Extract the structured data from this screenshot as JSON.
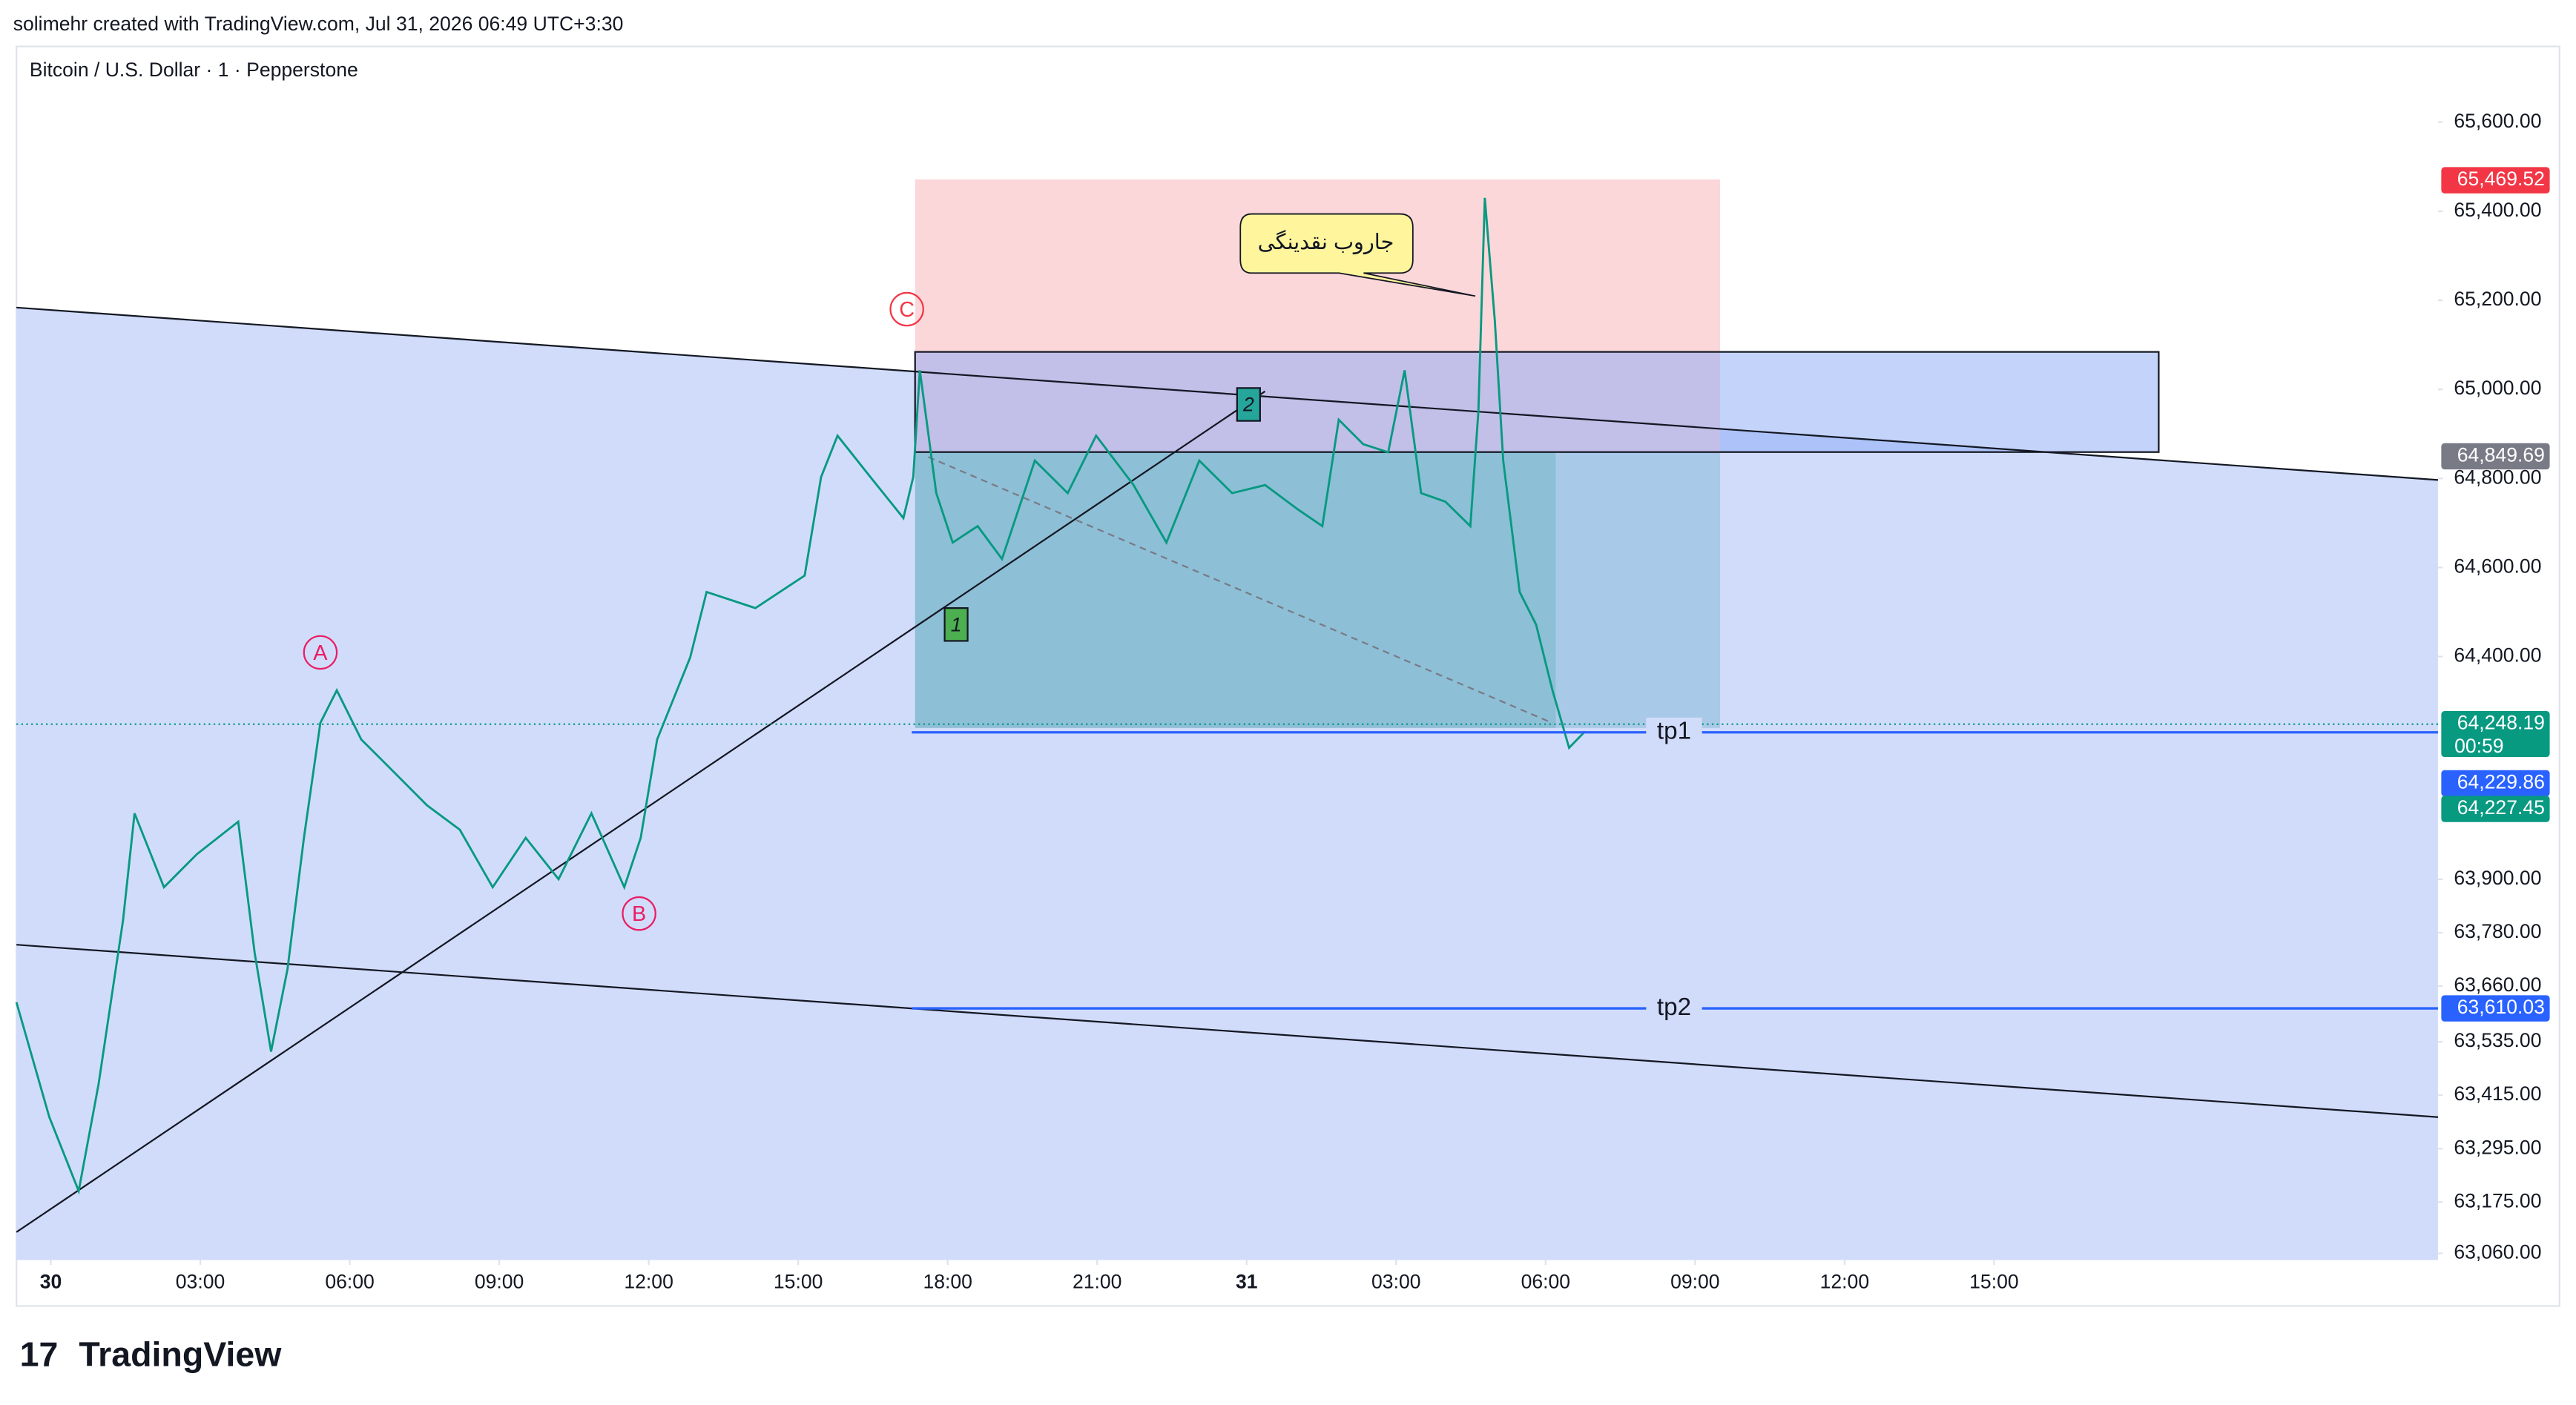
{
  "header": {
    "credit": "solimehr created with TradingView.com, Jul 31, 2026 06:49 UTC+3:30",
    "symbol": "Bitcoin / U.S. Dollar · 1 · Pepperstone"
  },
  "footer": {
    "brand": "TradingView"
  },
  "chart_data": {
    "type": "line",
    "series": [
      {
        "name": "BTCUSD",
        "color": "#089981",
        "x": [
          -0.69,
          -0.03,
          0.56,
          0.96,
          1.45,
          1.68,
          2.27,
          2.93,
          3.76,
          4.09,
          4.42,
          4.75,
          5.08,
          5.41,
          5.74,
          6.23,
          6.89,
          7.55,
          8.21,
          8.87,
          9.53,
          10.19,
          10.85,
          11.51,
          11.84,
          12.17,
          12.83,
          13.16,
          14.14,
          15.13,
          15.46,
          15.79,
          16.45,
          17.11,
          17.31,
          17.44,
          17.77,
          18.1,
          18.6,
          19.09,
          19.75,
          20.41,
          20.98,
          21.73,
          22.39,
          23.05,
          23.71,
          24.37,
          25.03,
          25.52,
          25.85,
          26.34,
          26.84,
          27.17,
          27.5,
          27.99,
          28.49,
          28.65,
          28.78,
          28.98,
          29.15,
          29.48,
          29.81,
          30.14,
          30.47,
          30.79
        ],
        "values": [
          63624,
          63366,
          63200,
          63440,
          63808,
          64048,
          63882,
          63956,
          64029,
          63735,
          63513,
          63698,
          63993,
          64251,
          64324,
          64214,
          64140,
          64066,
          64011,
          63882,
          63993,
          63900,
          64048,
          63882,
          63993,
          64214,
          64398,
          64545,
          64509,
          64582,
          64803,
          64896,
          64803,
          64711,
          64803,
          65043,
          64767,
          64656,
          64693,
          64619,
          64840,
          64767,
          64896,
          64785,
          64656,
          64840,
          64767,
          64785,
          64730,
          64693,
          64932,
          64877,
          64859,
          65043,
          64767,
          64748,
          64693,
          64951,
          65430,
          65154,
          64840,
          64545,
          64472,
          64324,
          64195,
          64232
        ]
      }
    ],
    "xlim": [
      -0.69,
      47.91
    ],
    "xticks": [
      {
        "value": 0,
        "label": "30"
      },
      {
        "value": 3,
        "label": "03:00"
      },
      {
        "value": 6,
        "label": "06:00"
      },
      {
        "value": 9,
        "label": "09:00"
      },
      {
        "value": 12,
        "label": "12:00"
      },
      {
        "value": 15,
        "label": "15:00"
      },
      {
        "value": 18,
        "label": "18:00"
      },
      {
        "value": 21,
        "label": "21:00"
      },
      {
        "value": 24,
        "label": "31"
      },
      {
        "value": 27,
        "label": "03:00"
      },
      {
        "value": 30,
        "label": "06:00"
      },
      {
        "value": 33,
        "label": "09:00"
      },
      {
        "value": 36,
        "label": "12:00"
      },
      {
        "value": 39,
        "label": "15:00"
      }
    ],
    "ylim": [
      63045,
      65770
    ],
    "yticks": [
      {
        "value": 65600,
        "label": "65,600.00"
      },
      {
        "value": 65400,
        "label": "65,400.00"
      },
      {
        "value": 65200,
        "label": "65,200.00"
      },
      {
        "value": 65000,
        "label": "65,000.00"
      },
      {
        "value": 64800,
        "label": "64,800.00"
      },
      {
        "value": 64600,
        "label": "64,600.00"
      },
      {
        "value": 64400,
        "label": "64,400.00"
      },
      {
        "value": 63900,
        "label": "63,900.00"
      },
      {
        "value": 63780,
        "label": "63,780.00"
      },
      {
        "value": 63660,
        "label": "63,660.00"
      },
      {
        "value": 63535,
        "label": "63,535.00"
      },
      {
        "value": 63415,
        "label": "63,415.00"
      },
      {
        "value": 63295,
        "label": "63,295.00"
      },
      {
        "value": 63175,
        "label": "63,175.00"
      },
      {
        "value": 63060,
        "label": "63,060.00"
      }
    ],
    "price_labels": [
      {
        "value": 65469.52,
        "label": "65,469.52",
        "color": "#f23645"
      },
      {
        "value": 64849.69,
        "label": "64,849.69",
        "color": "#787b86"
      },
      {
        "value": 64248.19,
        "label": "64,248.19",
        "color": "#089981",
        "sublabel": "00:59"
      },
      {
        "value": 64229.86,
        "label": "64,229.86",
        "color": "#2962ff"
      },
      {
        "value": 64227.45,
        "label": "64,227.45",
        "color": "#089981"
      },
      {
        "value": 63610.03,
        "label": "63,610.03",
        "color": "#2962ff"
      }
    ],
    "annotations": {
      "wave_a": "A",
      "wave_b": "B",
      "wave_c": "C",
      "point_1": "1",
      "point_2": "2",
      "tp1": "tp1",
      "tp2": "tp2",
      "callout": "جاروب نقدینگی"
    }
  }
}
